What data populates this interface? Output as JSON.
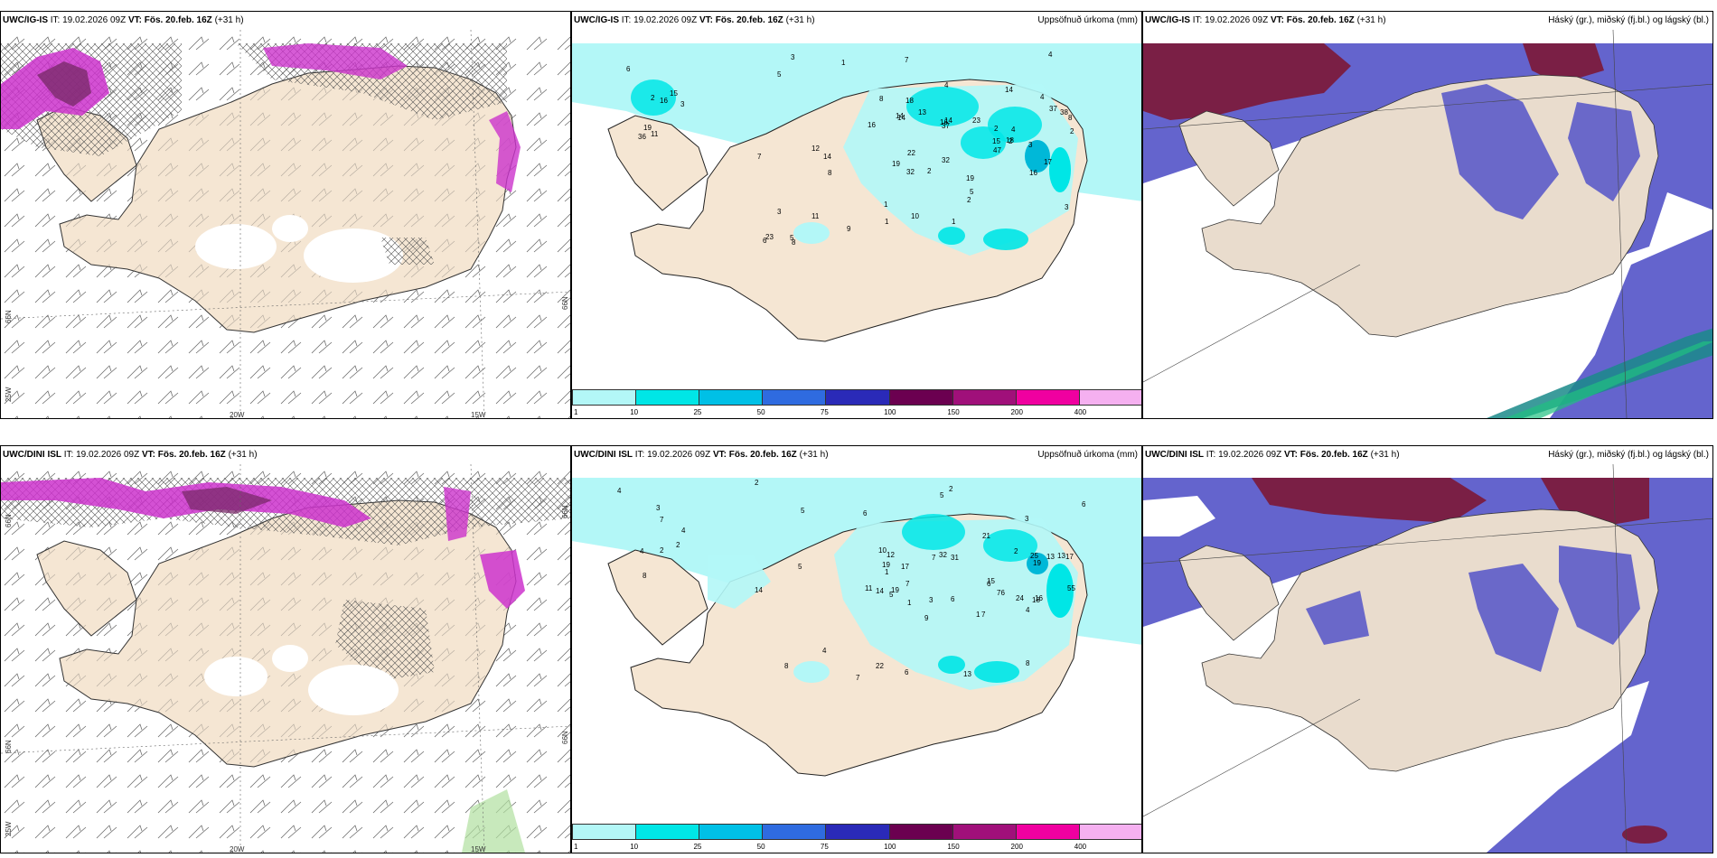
{
  "rows": [
    {
      "model": "UWC/IG-IS",
      "it_label": "IT:",
      "it_value": "19.02.2026 09Z",
      "vt_label": "VT:",
      "vt_value": "Fös. 20.feb. 16Z",
      "lead": "(+31 h)",
      "precip_title": "Uppsöfnuð úrkoma (mm)",
      "cloud_title": "Háský (gr.), miðský (fj.bl.) og lágský (bl.)",
      "lon_labels": [
        "20W",
        "15W"
      ],
      "lat_left": [
        "66N",
        "25W"
      ],
      "lat_right": [
        "66N"
      ]
    },
    {
      "model": "UWC/DINI ISL",
      "it_label": "IT:",
      "it_value": "19.02.2026 09Z",
      "vt_label": "VT:",
      "vt_value": "Fös. 20.feb. 16Z",
      "lead": "(+31 h)",
      "precip_title": "Uppsöfnuð úrkoma (mm)",
      "cloud_title": "Háský (gr.), miðský (fj.bl.) og lágský (bl.)",
      "lon_labels": [
        "20W",
        "15W"
      ],
      "lat_left": [
        "66N",
        "66N",
        "25W"
      ],
      "lat_right": [
        "66N",
        "66N"
      ]
    }
  ],
  "colorbar": {
    "ticks": [
      "1",
      "10",
      "25",
      "50",
      "75",
      "100",
      "150",
      "200",
      "400"
    ],
    "colors": [
      "#b3f7f7",
      "#00e6e6",
      "#00c0e6",
      "#2f6be0",
      "#2a2ab8",
      "#6b0050",
      "#a0107a",
      "#f000a0",
      "#f5b0f0"
    ]
  },
  "colors": {
    "land": "#f5e6d3",
    "cloud_land": "#e9dccd",
    "precip_light": "#b3f7f7",
    "precip_mid": "#00e6e6",
    "precip_deep": "#00b8d8",
    "magenta": "#cc33cc",
    "high_cloud": "#7a1f45",
    "mid_cloud": "#5353c8",
    "low_cloud": "#5a7ac0"
  },
  "precip_numbers": {
    "top": [
      "4",
      "6",
      "4",
      "5",
      "7",
      "2",
      "3",
      "1",
      "19",
      "16",
      "36",
      "11",
      "15",
      "3",
      "2",
      "8",
      "4",
      "8",
      "15",
      "37",
      "37",
      "32",
      "14",
      "18",
      "14",
      "22",
      "16",
      "17",
      "18",
      "19",
      "13",
      "14",
      "47",
      "32",
      "38",
      "23",
      "23",
      "1",
      "2",
      "3",
      "3",
      "2",
      "2",
      "1",
      "11",
      "8",
      "6",
      "10",
      "4",
      "14",
      "8",
      "7",
      "12",
      "2",
      "5",
      "16",
      "16",
      "19",
      "3",
      "1",
      "9",
      "5",
      "14"
    ],
    "bottom": [
      "2",
      "2",
      "6",
      "5",
      "6",
      "3",
      "4",
      "5",
      "4",
      "4",
      "2",
      "8",
      "7",
      "2",
      "1",
      "7",
      "6",
      "3",
      "2",
      "7",
      "12",
      "19",
      "17",
      "13",
      "11",
      "10",
      "31",
      "25",
      "16",
      "14",
      "18",
      "21",
      "19",
      "32",
      "76",
      "55",
      "24",
      "22",
      "13",
      "17",
      "8",
      "7",
      "13",
      "5",
      "6",
      "6",
      "8",
      "15",
      "14",
      "9",
      "1",
      "4",
      "3",
      "19",
      "7",
      "4",
      "5",
      "1"
    ]
  }
}
